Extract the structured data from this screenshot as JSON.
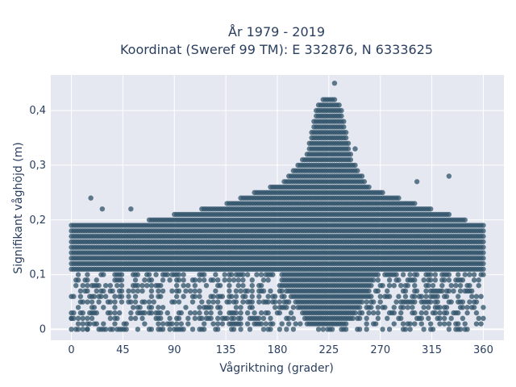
{
  "chart_data": {
    "type": "scatter",
    "title": "År 1979 - 2019",
    "subtitle": "Koordinat (Sweref 99 TM): E 332876, N 6333625",
    "xlabel": "Vågriktning (grader)",
    "ylabel": "Signifikant våghöjd (m)",
    "xlim": [
      -18,
      378
    ],
    "ylim": [
      -0.02,
      0.465
    ],
    "x_ticks": [
      0,
      45,
      90,
      135,
      180,
      225,
      270,
      315,
      360
    ],
    "x_tick_labels": [
      "0",
      "45",
      "90",
      "135",
      "180",
      "225",
      "270",
      "315",
      "360"
    ],
    "y_ticks": [
      0,
      0.1,
      0.2,
      0.3,
      0.4
    ],
    "y_tick_labels": [
      "0",
      "0,1",
      "0,2",
      "0,3",
      "0,4"
    ],
    "grid": true,
    "marker_color": "#2f5168",
    "background_color": "#e5e8f0",
    "distribution": {
      "x_step": 2,
      "y_step": 0.01,
      "envelope": [
        {
          "x": 0,
          "y": 0.19
        },
        {
          "x": 45,
          "y": 0.19
        },
        {
          "x": 90,
          "y": 0.21
        },
        {
          "x": 135,
          "y": 0.23
        },
        {
          "x": 160,
          "y": 0.25
        },
        {
          "x": 185,
          "y": 0.27
        },
        {
          "x": 205,
          "y": 0.32
        },
        {
          "x": 215,
          "y": 0.41
        },
        {
          "x": 225,
          "y": 0.43
        },
        {
          "x": 235,
          "y": 0.41
        },
        {
          "x": 245,
          "y": 0.31
        },
        {
          "x": 260,
          "y": 0.26
        },
        {
          "x": 300,
          "y": 0.23
        },
        {
          "x": 330,
          "y": 0.21
        },
        {
          "x": 360,
          "y": 0.19
        }
      ],
      "dense_min": {
        "sides": 0.11,
        "peak": 0.0,
        "peak_x": 225,
        "peak_halfwidth": 45
      }
    },
    "outliers": [
      {
        "x": 17,
        "y": 0.24
      },
      {
        "x": 330,
        "y": 0.28
      },
      {
        "x": 230,
        "y": 0.45
      },
      {
        "x": 302,
        "y": 0.27
      },
      {
        "x": 248,
        "y": 0.33
      },
      {
        "x": 52,
        "y": 0.22
      },
      {
        "x": 27,
        "y": 0.22
      },
      {
        "x": 0,
        "y": 0.02
      },
      {
        "x": 14,
        "y": 0.0
      },
      {
        "x": 360,
        "y": 0.02
      }
    ]
  }
}
